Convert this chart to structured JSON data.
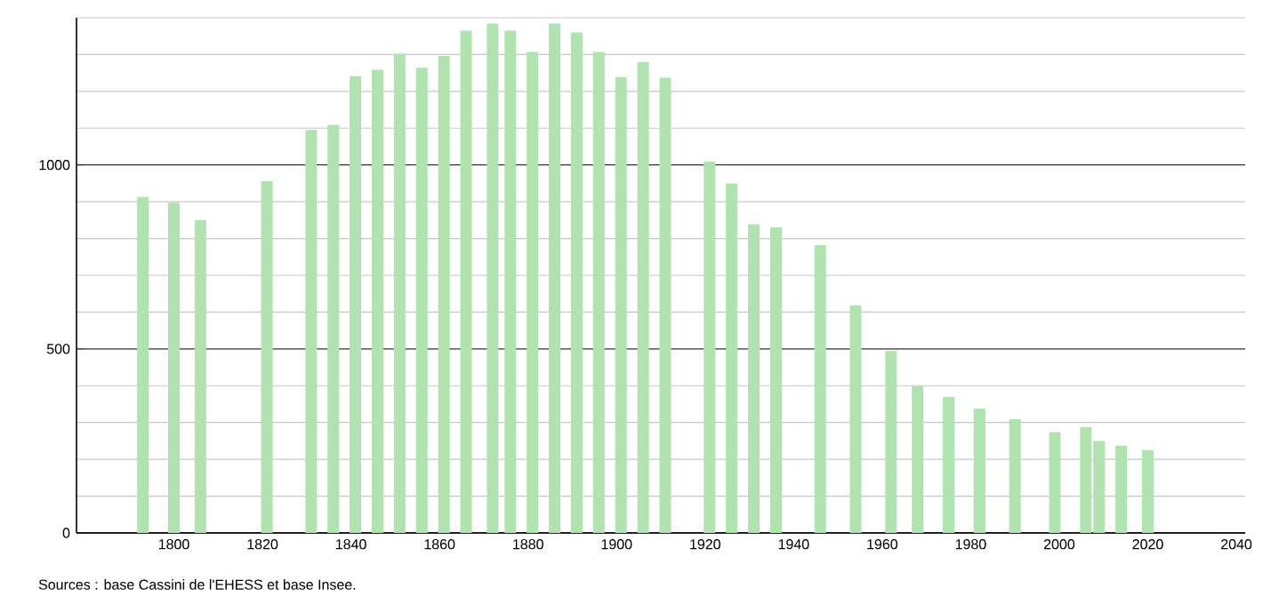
{
  "chart_data": {
    "type": "bar",
    "x": [
      1793,
      1800,
      1806,
      1821,
      1831,
      1836,
      1841,
      1846,
      1851,
      1856,
      1861,
      1866,
      1872,
      1876,
      1881,
      1886,
      1891,
      1896,
      1901,
      1906,
      1911,
      1921,
      1926,
      1931,
      1936,
      1946,
      1954,
      1962,
      1968,
      1975,
      1982,
      1990,
      1999,
      2006,
      2009,
      2014,
      2020
    ],
    "values": [
      913,
      897,
      850,
      956,
      1095,
      1109,
      1241,
      1259,
      1302,
      1264,
      1296,
      1365,
      1384,
      1365,
      1307,
      1384,
      1360,
      1307,
      1239,
      1280,
      1237,
      1009,
      950,
      839,
      830,
      782,
      618,
      494,
      399,
      370,
      338,
      309,
      274,
      288,
      250,
      237,
      225
    ],
    "color": "#b0e3b0",
    "xlim": [
      1778,
      2042
    ],
    "xticks": [
      1800,
      1820,
      1840,
      1860,
      1880,
      1900,
      1920,
      1940,
      1960,
      1980,
      2000,
      2020,
      2040
    ],
    "ylim": [
      0,
      1400
    ],
    "yticks": [
      0,
      {
        "value": 100,
        "label": null
      },
      {
        "value": 200,
        "label": null
      },
      {
        "value": 300,
        "label": null
      },
      {
        "value": 400,
        "label": null
      },
      500,
      {
        "value": 600,
        "label": null
      },
      {
        "value": 700,
        "label": null
      },
      {
        "value": 800,
        "label": null
      },
      {
        "value": 900,
        "label": null
      },
      1000,
      {
        "value": 1100,
        "label": null
      },
      {
        "value": 1200,
        "label": null
      },
      {
        "value": 1300,
        "label": null
      },
      {
        "value": 1400,
        "label": null
      }
    ],
    "grid": "y",
    "annotations": [
      "Sources : base Cassini de l'EHESS et base Insee."
    ]
  }
}
